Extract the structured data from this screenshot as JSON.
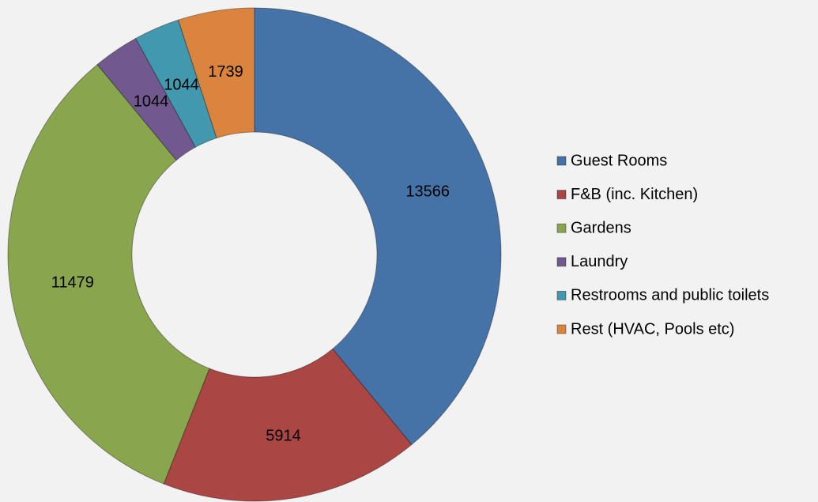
{
  "chart_data": {
    "type": "donut",
    "categories": [
      "Guest Rooms",
      "F&B (inc. Kitchen)",
      "Gardens",
      "Laundry",
      "Restrooms and public toilets",
      "Rest (HVAC, Pools etc)"
    ],
    "values": [
      13566,
      5914,
      11479,
      1044,
      1044,
      1739
    ],
    "colors": [
      "#4572a7",
      "#aa4643",
      "#89a54e",
      "#71588f",
      "#4198af",
      "#db843d"
    ],
    "legend": "right"
  }
}
